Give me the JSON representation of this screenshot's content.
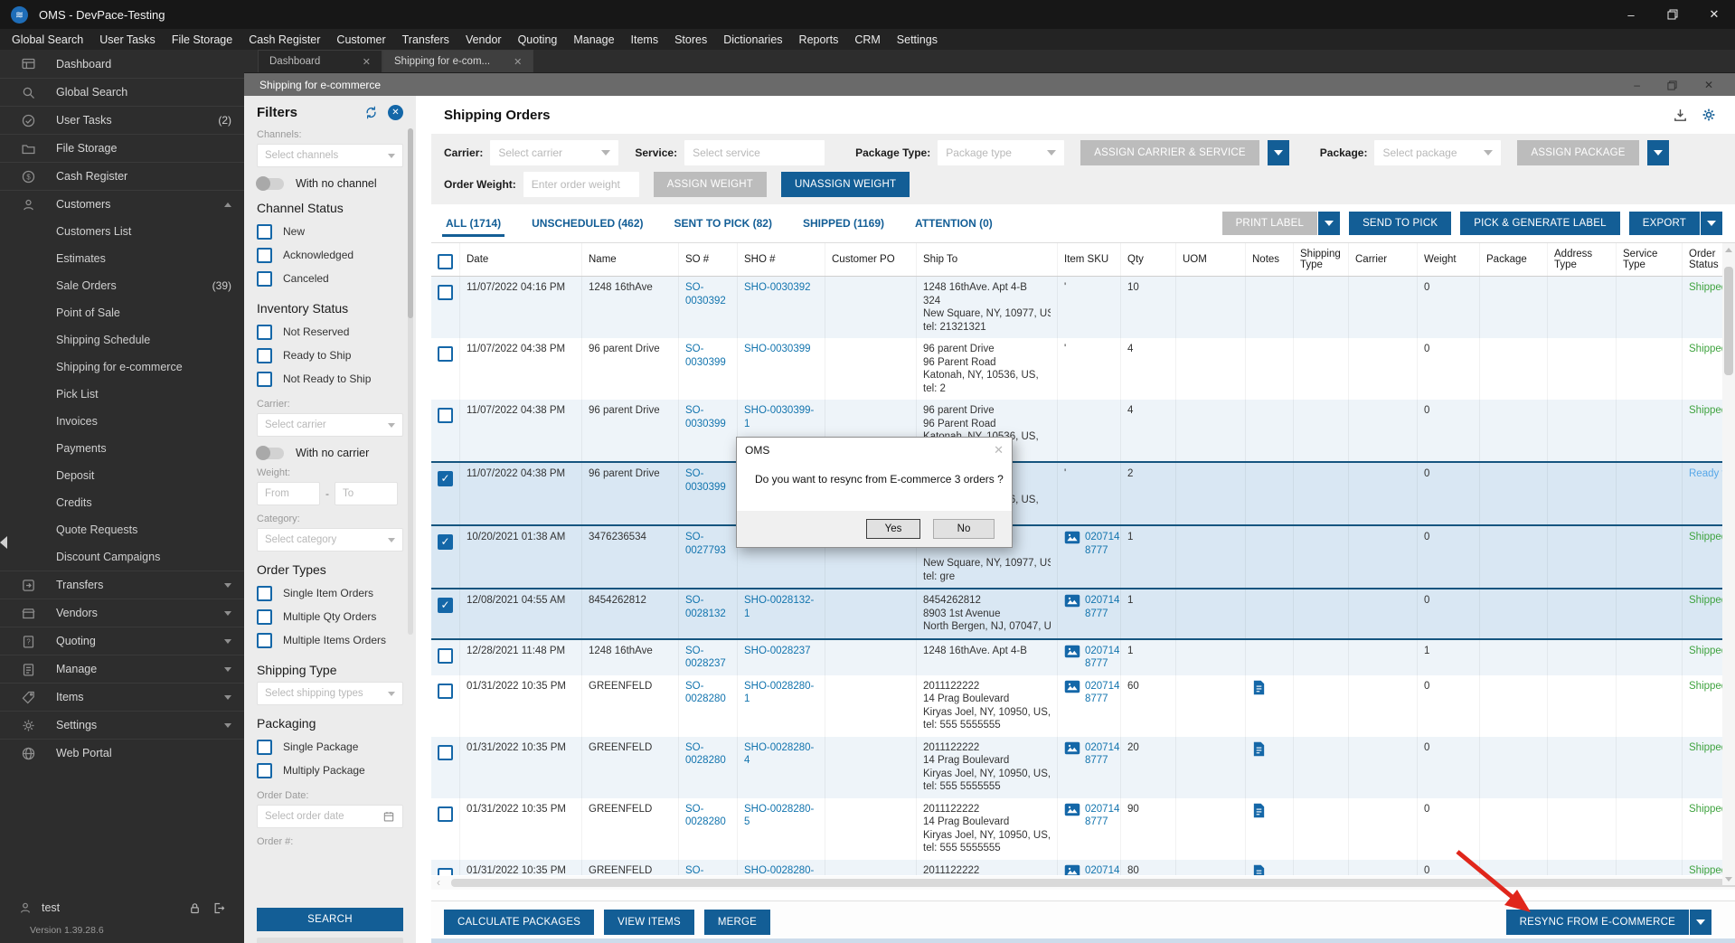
{
  "window": {
    "title": "OMS - DevPace-Testing"
  },
  "menubar": [
    "Global Search",
    "User Tasks",
    "File Storage",
    "Cash Register",
    "Customer",
    "Transfers",
    "Vendor",
    "Quoting",
    "Manage",
    "Items",
    "Stores",
    "Dictionaries",
    "Reports",
    "CRM",
    "Settings"
  ],
  "tabs": [
    {
      "label": "Dashboard",
      "active": false
    },
    {
      "label": "Shipping for e-com...",
      "active": true
    }
  ],
  "inner_window": {
    "title": "Shipping for e-commerce"
  },
  "sidebar": {
    "items": [
      {
        "label": "Dashboard",
        "icon": "dashboard"
      },
      {
        "label": "Global Search",
        "icon": "search"
      },
      {
        "label": "User Tasks",
        "icon": "tasks",
        "badge": "(2)"
      },
      {
        "label": "File Storage",
        "icon": "folder"
      },
      {
        "label": "Cash Register",
        "icon": "cash"
      },
      {
        "label": "Customers",
        "icon": "person",
        "chevron": "up",
        "children": [
          {
            "label": "Customers List"
          },
          {
            "label": "Estimates"
          },
          {
            "label": "Sale Orders",
            "badge": "(39)"
          },
          {
            "label": "Point of Sale"
          },
          {
            "label": "Shipping Schedule"
          },
          {
            "label": "Shipping for e-commerce"
          },
          {
            "label": "Pick List"
          },
          {
            "label": "Invoices"
          },
          {
            "label": "Payments"
          },
          {
            "label": "Deposit"
          },
          {
            "label": "Credits"
          },
          {
            "label": "Quote Requests"
          },
          {
            "label": "Discount Campaigns"
          }
        ]
      },
      {
        "label": "Transfers",
        "icon": "transfers",
        "chevron": "down"
      },
      {
        "label": "Vendors",
        "icon": "vendors",
        "chevron": "down"
      },
      {
        "label": "Quoting",
        "icon": "quoting",
        "chevron": "down"
      },
      {
        "label": "Manage",
        "icon": "manage",
        "chevron": "down"
      },
      {
        "label": "Items",
        "icon": "items",
        "chevron": "down"
      },
      {
        "label": "Settings",
        "icon": "settings",
        "chevron": "down"
      },
      {
        "label": "Web Portal",
        "icon": "webportal"
      }
    ],
    "user": {
      "name": "test",
      "version": "Version 1.39.28.6"
    }
  },
  "filters": {
    "title": "Filters",
    "channels_label": "Channels:",
    "channels_placeholder": "Select channels",
    "with_no_channel": "With no channel",
    "channel_status": {
      "title": "Channel Status",
      "options": [
        "New",
        "Acknowledged",
        "Canceled"
      ]
    },
    "inventory_status": {
      "title": "Inventory Status",
      "options": [
        "Not Reserved",
        "Ready to Ship",
        "Not Ready to Ship"
      ]
    },
    "carrier_label": "Carrier:",
    "carrier_placeholder": "Select carrier",
    "with_no_carrier": "With no carrier",
    "weight_label": "Weight:",
    "weight_from": "From",
    "weight_sep": "-",
    "weight_to": "To",
    "category_label": "Category:",
    "category_placeholder": "Select category",
    "order_types": {
      "title": "Order Types",
      "options": [
        "Single Item Orders",
        "Multiple Qty Orders",
        "Multiple Items Orders"
      ]
    },
    "shipping_type_title": "Shipping Type",
    "shipping_type_placeholder": "Select shipping types",
    "packaging": {
      "title": "Packaging",
      "options": [
        "Single Package",
        "Multiply Package"
      ]
    },
    "order_date_label": "Order Date:",
    "order_date_placeholder": "Select order date",
    "order_number_label": "Order #:",
    "search_button": "SEARCH"
  },
  "page": {
    "title": "Shipping Orders"
  },
  "toolbar": {
    "carrier_label": "Carrier:",
    "carrier_placeholder": "Select carrier",
    "service_label": "Service:",
    "service_placeholder": "Select service",
    "package_type_label": "Package Type:",
    "package_type_placeholder": "Package type",
    "assign_carrier_service": "ASSIGN CARRIER & SERVICE",
    "package_label": "Package:",
    "package_placeholder": "Select package",
    "assign_package": "ASSIGN PACKAGE",
    "order_weight_label": "Order Weight:",
    "order_weight_placeholder": "Enter order weight",
    "assign_weight": "ASSIGN WEIGHT",
    "unassign_weight": "UNASSIGN WEIGHT"
  },
  "view_tabs": [
    {
      "label": "ALL (1714)",
      "active": true
    },
    {
      "label": "UNSCHEDULED (462)",
      "active": false
    },
    {
      "label": "SENT TO PICK (82)",
      "active": false
    },
    {
      "label": "SHIPPED (1169)",
      "active": false
    },
    {
      "label": "ATTENTION (0)",
      "active": false
    }
  ],
  "actions": {
    "print_label": "PRINT LABEL",
    "send_to_pick": "SEND TO PICK",
    "pick_generate_label": "PICK & GENERATE LABEL",
    "export": "EXPORT"
  },
  "table": {
    "columns": [
      "",
      "Date",
      "Name",
      "SO #",
      "SHO #",
      "Customer PO",
      "Ship To",
      "Item SKU",
      "Qty",
      "UOM",
      "Notes",
      "Shipping Type",
      "Carrier",
      "Weight",
      "Package",
      "Address Type",
      "Service Type",
      "Order Status"
    ],
    "rows": [
      {
        "checked": false,
        "selected": false,
        "bg": "a",
        "date": "11/07/2022 04:16 PM",
        "name": "1248 16thAve",
        "so": "SO-0030392",
        "sho": "SHO-0030392",
        "customer_po": "",
        "ship_to": [
          "1248 16thAve. Apt 4-B",
          "324",
          "New Square, NY, 10977, US,",
          "tel: 21321321"
        ],
        "sku_text": "'",
        "sku_img": false,
        "qty": "10",
        "uom": "",
        "notes_icon": false,
        "shipping_type": "",
        "carrier": "",
        "weight": "0",
        "package": "",
        "address_type": "",
        "service_type": "",
        "status": "Shipped",
        "status_color": "green"
      },
      {
        "checked": false,
        "selected": false,
        "bg": "b",
        "date": "11/07/2022 04:38 PM",
        "name": "96 parent Drive",
        "so": "SO-0030399",
        "sho": "SHO-0030399",
        "customer_po": "",
        "ship_to": [
          "96 parent Drive",
          "96 Parent Road",
          "Katonah, NY, 10536, US,",
          "tel: 2"
        ],
        "sku_text": "'",
        "sku_img": false,
        "qty": "4",
        "uom": "",
        "notes_icon": false,
        "shipping_type": "",
        "carrier": "",
        "weight": "0",
        "package": "",
        "address_type": "",
        "service_type": "",
        "status": "Shipped",
        "status_color": "green"
      },
      {
        "checked": false,
        "selected": false,
        "bg": "a",
        "date": "11/07/2022 04:38 PM",
        "name": "96 parent Drive",
        "so": "SO-0030399",
        "sho": "SHO-0030399-1",
        "customer_po": "",
        "ship_to": [
          "96 parent Drive",
          "96 Parent Road",
          "Katonah, NY, 10536, US,",
          "tel: 2"
        ],
        "sku_text": "",
        "sku_img": false,
        "qty": "4",
        "uom": "",
        "notes_icon": false,
        "shipping_type": "",
        "carrier": "",
        "weight": "0",
        "package": "",
        "address_type": "",
        "service_type": "",
        "status": "Shipped",
        "status_color": "green"
      },
      {
        "checked": true,
        "selected": true,
        "bg": "sel",
        "date": "11/07/2022 04:38 PM",
        "name": "96 parent Drive",
        "so": "SO-0030399",
        "sho": "",
        "customer_po": "",
        "ship_to": [
          "96 parent Drive",
          "96 Parent Road",
          "Katonah, NY, 10536, US,",
          "tel: 2"
        ],
        "sku_text": "'",
        "sku_img": false,
        "qty": "2",
        "uom": "",
        "notes_icon": false,
        "shipping_type": "",
        "carrier": "",
        "weight": "0",
        "package": "",
        "address_type": "",
        "service_type": "",
        "status": "Ready t",
        "status_color": "blue"
      },
      {
        "checked": true,
        "selected": true,
        "bg": "sel",
        "date": "10/20/2021 01:38 AM",
        "name": "3476236534",
        "so": "SO-0027793",
        "sho": "",
        "customer_po": "",
        "ship_to": [
          "",
          "",
          "New Square, NY, 10977, US,",
          "tel: gre"
        ],
        "sku_text": "0207142 8777",
        "sku_img": true,
        "qty": "1",
        "uom": "",
        "notes_icon": false,
        "shipping_type": "",
        "carrier": "",
        "weight": "0",
        "package": "",
        "address_type": "",
        "service_type": "",
        "status": "Shipped",
        "status_color": "green"
      },
      {
        "checked": true,
        "selected": true,
        "bg": "sel",
        "date": "12/08/2021 04:55 AM",
        "name": "8454262812",
        "so": "SO-0028132",
        "sho": "SHO-0028132-1",
        "customer_po": "",
        "ship_to": [
          "8454262812",
          "8903 1st Avenue",
          "North Bergen, NJ, 07047, US,"
        ],
        "sku_text": "0207142 8777",
        "sku_img": true,
        "qty": "1",
        "uom": "",
        "notes_icon": false,
        "shipping_type": "",
        "carrier": "",
        "weight": "0",
        "package": "",
        "address_type": "",
        "service_type": "",
        "status": "Shipped",
        "status_color": "green"
      },
      {
        "checked": false,
        "selected": false,
        "bg": "a",
        "date": "12/28/2021 11:48 PM",
        "name": "1248 16thAve",
        "so": "SO-0028237",
        "sho": "SHO-0028237",
        "customer_po": "",
        "ship_to": [
          "1248 16thAve. Apt 4-B"
        ],
        "sku_text": "0207142 8777",
        "sku_img": true,
        "qty": "1",
        "uom": "",
        "notes_icon": false,
        "shipping_type": "",
        "carrier": "",
        "weight": "1",
        "package": "",
        "address_type": "",
        "service_type": "",
        "status": "Shipped",
        "status_color": "green"
      },
      {
        "checked": false,
        "selected": false,
        "bg": "b",
        "date": "01/31/2022 10:35 PM",
        "name": "GREENFELD",
        "so": "SO-0028280",
        "sho": "SHO-0028280-1",
        "customer_po": "",
        "ship_to": [
          "2011122222",
          "14 Prag Boulevard",
          "Kiryas Joel, NY, 10950, US,",
          "tel: 555 5555555"
        ],
        "sku_text": "0207142 8777",
        "sku_img": true,
        "qty": "60",
        "uom": "",
        "notes_icon": true,
        "shipping_type": "",
        "carrier": "",
        "weight": "0",
        "package": "",
        "address_type": "",
        "service_type": "",
        "status": "Shipped",
        "status_color": "green"
      },
      {
        "checked": false,
        "selected": false,
        "bg": "a",
        "date": "01/31/2022 10:35 PM",
        "name": "GREENFELD",
        "so": "SO-0028280",
        "sho": "SHO-0028280-4",
        "customer_po": "",
        "ship_to": [
          "2011122222",
          "14 Prag Boulevard",
          "Kiryas Joel, NY, 10950, US,",
          "tel: 555 5555555"
        ],
        "sku_text": "0207142 8777",
        "sku_img": true,
        "qty": "20",
        "uom": "",
        "notes_icon": true,
        "shipping_type": "",
        "carrier": "",
        "weight": "0",
        "package": "",
        "address_type": "",
        "service_type": "",
        "status": "Shipped",
        "status_color": "green"
      },
      {
        "checked": false,
        "selected": false,
        "bg": "b",
        "date": "01/31/2022 10:35 PM",
        "name": "GREENFELD",
        "so": "SO-0028280",
        "sho": "SHO-0028280-5",
        "customer_po": "",
        "ship_to": [
          "2011122222",
          "14 Prag Boulevard",
          "Kiryas Joel, NY, 10950, US,",
          "tel: 555 5555555"
        ],
        "sku_text": "0207142 8777",
        "sku_img": true,
        "qty": "90",
        "uom": "",
        "notes_icon": true,
        "shipping_type": "",
        "carrier": "",
        "weight": "0",
        "package": "",
        "address_type": "",
        "service_type": "",
        "status": "Shipped",
        "status_color": "green"
      },
      {
        "checked": false,
        "selected": false,
        "bg": "a",
        "date": "01/31/2022 10:35 PM",
        "name": "GREENFELD",
        "so": "SO-0028280",
        "sho": "SHO-0028280-3",
        "customer_po": "",
        "ship_to": [
          "2011122222",
          "14 Prag Boulevard",
          "Kiryas Joel, NY, 10950, US,",
          "tel: 555 5555555"
        ],
        "sku_text": "0207142 8777",
        "sku_img": true,
        "qty": "80",
        "uom": "",
        "notes_icon": true,
        "shipping_type": "",
        "carrier": "",
        "weight": "0",
        "package": "",
        "address_type": "",
        "service_type": "",
        "status": "Shipped",
        "status_color": "green"
      }
    ]
  },
  "bottom": {
    "calculate_packages": "CALCULATE PACKAGES",
    "view_items": "VIEW ITEMS",
    "merge": "MERGE",
    "resync": "RESYNC FROM E-COMMERCE"
  },
  "modal": {
    "title": "OMS",
    "message": "Do you want to resync from E-commerce 3 orders ?",
    "yes": "Yes",
    "no": "No"
  },
  "colors": {
    "accent_blue": "#135e96",
    "link_blue": "#1274ae",
    "status_shipped": "#3fa33f",
    "status_ready": "#58a8e8",
    "selection_bg": "#d9e7f3",
    "sidebar_bg": "#2d2d2d",
    "arrow_red": "#e0261b"
  }
}
